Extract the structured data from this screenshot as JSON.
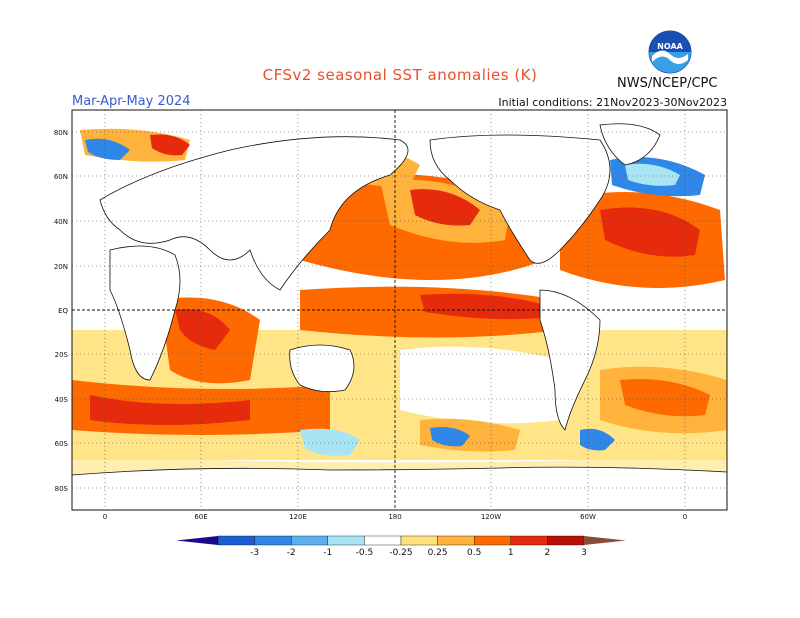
{
  "header": {
    "title": "CFSv2 seasonal SST anomalies (K)",
    "season": "Mar-Apr-May 2024",
    "initial_conditions": "Initial conditions: 21Nov2023-30Nov2023",
    "agency": "NWS/NCEP/CPC",
    "logo_text": "NOAA",
    "logo_icon": "noaa-logo-icon"
  },
  "map": {
    "lat_labels": [
      "80N",
      "60N",
      "40N",
      "20N",
      "EQ",
      "20S",
      "40S",
      "60S",
      "80S"
    ],
    "lon_labels": [
      "0",
      "60E",
      "120E",
      "180",
      "120W",
      "60W",
      "0"
    ],
    "reference_lines": [
      "equator",
      "dateline"
    ]
  },
  "colorbar": {
    "labels": [
      "-3",
      "-2",
      "-1",
      "-0.5",
      "-0.25",
      "0.25",
      "0.5",
      "1",
      "2",
      "3"
    ],
    "colors": [
      "#1a0a8c",
      "#1c5fd4",
      "#2f87e8",
      "#5cb0f2",
      "#a9e4f5",
      "#ffffff",
      "#ffe27a",
      "#ffb23c",
      "#ff6a00",
      "#e62a0c",
      "#b81006",
      "#8a4a3c"
    ]
  }
}
